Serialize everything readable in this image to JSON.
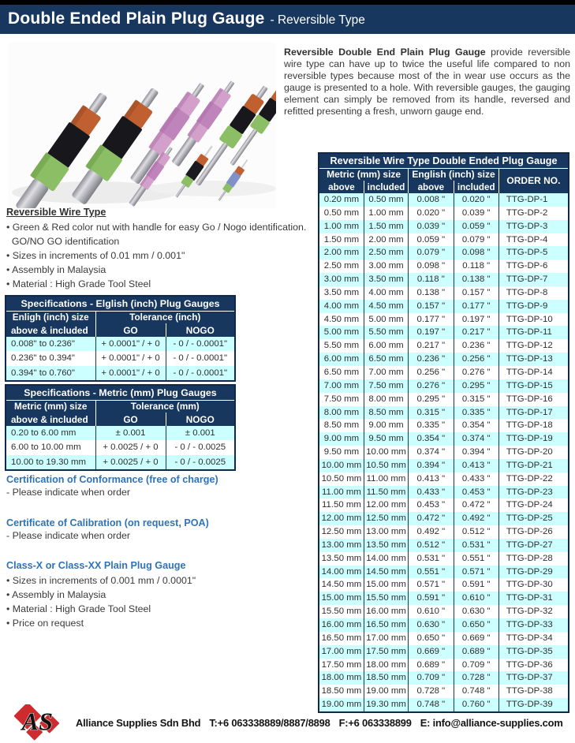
{
  "header": {
    "title_main": "Double Ended Plain Plug Gauge",
    "title_sub": "- Reversible Type"
  },
  "intro": {
    "lead": "Reversible Double End Plain Plug Gauge",
    "body": " provide reversible wire type can have up to twice the useful life compared to non reversible types because most of the in wear use occurs as the gauge is presented to a hole. With reversible gauges, the gauging element can simply be removed from its handle, reversed and refitted presenting a fresh, unworn gauge end."
  },
  "features": {
    "heading": "Reversible Wire Type",
    "lines": [
      "• Green & Red color nut with handle for easy Go / Nogo identification.",
      "  GO/NO GO identification",
      "• Sizes in increments of 0.01 mm / 0.001\"",
      "• Assembly in Malaysia",
      "• Material : High Grade Tool Steel"
    ]
  },
  "main_table": {
    "title": "Reversible Wire Type Double Ended Plug Gauge",
    "group_metric": "Metric (mm) size",
    "group_english": "English (inch) size",
    "order_header": "ORDER NO.",
    "sub_above_1": "above",
    "sub_included_1": "included",
    "sub_above_2": "above",
    "sub_included_2": "included",
    "rows": [
      [
        "0.20 mm",
        "0.50 mm",
        "0.008 \"",
        "0.020 \"",
        "TTG-DP-1"
      ],
      [
        "0.50 mm",
        "1.00 mm",
        "0.020 \"",
        "0.039 \"",
        "TTG-DP-2"
      ],
      [
        "1.00 mm",
        "1.50 mm",
        "0.039 \"",
        "0.059 \"",
        "TTG-DP-3"
      ],
      [
        "1.50 mm",
        "2.00 mm",
        "0.059 \"",
        "0.079 \"",
        "TTG-DP-4"
      ],
      [
        "2.00 mm",
        "2.50 mm",
        "0.079 \"",
        "0.098 \"",
        "TTG-DP-5"
      ],
      [
        "2.50 mm",
        "3.00 mm",
        "0.098 \"",
        "0.118 \"",
        "TTG-DP-6"
      ],
      [
        "3.00 mm",
        "3.50 mm",
        "0.118 \"",
        "0.138 \"",
        "TTG-DP-7"
      ],
      [
        "3.50 mm",
        "4.00 mm",
        "0.138 \"",
        "0.157 \"",
        "TTG-DP-8"
      ],
      [
        "4.00 mm",
        "4.50 mm",
        "0.157 \"",
        "0.177 \"",
        "TTG-DP-9"
      ],
      [
        "4.50 mm",
        "5.00 mm",
        "0.177 \"",
        "0.197 \"",
        "TTG-DP-10"
      ],
      [
        "5.00 mm",
        "5.50 mm",
        "0.197 \"",
        "0.217 \"",
        "TTG-DP-11"
      ],
      [
        "5.50 mm",
        "6.00 mm",
        "0.217 \"",
        "0.236 \"",
        "TTG-DP-12"
      ],
      [
        "6.00 mm",
        "6.50 mm",
        "0.236 \"",
        "0.256 \"",
        "TTG-DP-13"
      ],
      [
        "6.50 mm",
        "7.00 mm",
        "0.256 \"",
        "0.276 \"",
        "TTG-DP-14"
      ],
      [
        "7.00 mm",
        "7.50 mm",
        "0.276 \"",
        "0.295 \"",
        "TTG-DP-15"
      ],
      [
        "7.50 mm",
        "8.00 mm",
        "0.295 \"",
        "0.315 \"",
        "TTG-DP-16"
      ],
      [
        "8.00 mm",
        "8.50 mm",
        "0.315 \"",
        "0.335 \"",
        "TTG-DP-17"
      ],
      [
        "8.50 mm",
        "9.00 mm",
        "0.335 \"",
        "0.354 \"",
        "TTG-DP-18"
      ],
      [
        "9.00 mm",
        "9.50 mm",
        "0.354 \"",
        "0.374 \"",
        "TTG-DP-19"
      ],
      [
        "9.50 mm",
        "10.00 mm",
        "0.374 \"",
        "0.394 \"",
        "TTG-DP-20"
      ],
      [
        "10.00 mm",
        "10.50 mm",
        "0.394 \"",
        "0.413 \"",
        "TTG-DP-21"
      ],
      [
        "10.50 mm",
        "11.00 mm",
        "0.413 \"",
        "0.433 \"",
        "TTG-DP-22"
      ],
      [
        "11.00 mm",
        "11.50 mm",
        "0.433 \"",
        "0.453 \"",
        "TTG-DP-23"
      ],
      [
        "11.50 mm",
        "12.00 mm",
        "0.453 \"",
        "0.472 \"",
        "TTG-DP-24"
      ],
      [
        "12.00 mm",
        "12.50 mm",
        "0.472 \"",
        "0.492 \"",
        "TTG-DP-25"
      ],
      [
        "12.50 mm",
        "13.00 mm",
        "0.492 \"",
        "0.512 \"",
        "TTG-DP-26"
      ],
      [
        "13.00 mm",
        "13.50 mm",
        "0.512 \"",
        "0.531 \"",
        "TTG-DP-27"
      ],
      [
        "13.50 mm",
        "14.00 mm",
        "0.531 \"",
        "0.551 \"",
        "TTG-DP-28"
      ],
      [
        "14.00 mm",
        "14.50 mm",
        "0.551 \"",
        "0.571 \"",
        "TTG-DP-29"
      ],
      [
        "14.50 mm",
        "15.00 mm",
        "0.571 \"",
        "0.591 \"",
        "TTG-DP-30"
      ],
      [
        "15.00 mm",
        "15.50 mm",
        "0.591 \"",
        "0.610 \"",
        "TTG-DP-31"
      ],
      [
        "15.50 mm",
        "16.00 mm",
        "0.610 \"",
        "0.630 \"",
        "TTG-DP-32"
      ],
      [
        "16.00 mm",
        "16.50 mm",
        "0.630 \"",
        "0.650 \"",
        "TTG-DP-33"
      ],
      [
        "16.50 mm",
        "17.00 mm",
        "0.650 \"",
        "0.669 \"",
        "TTG-DP-34"
      ],
      [
        "17.00 mm",
        "17.50 mm",
        "0.669 \"",
        "0.689 \"",
        "TTG-DP-35"
      ],
      [
        "17.50 mm",
        "18.00 mm",
        "0.689 \"",
        "0.709 \"",
        "TTG-DP-36"
      ],
      [
        "18.00 mm",
        "18.50 mm",
        "0.709 \"",
        "0.728 \"",
        "TTG-DP-37"
      ],
      [
        "18.50 mm",
        "19.00 mm",
        "0.728 \"",
        "0.748 \"",
        "TTG-DP-38"
      ],
      [
        "19.00 mm",
        "19.30 mm",
        "0.748 \"",
        "0.760 \"",
        "TTG-DP-39"
      ]
    ]
  },
  "spec_inch_table": {
    "title": "Specifications - Elglish (inch) Plug Gauges",
    "size_header_line1": "Enligh (inch) size",
    "size_header_line2": "above & included",
    "tolerance_header": "Tolerance (inch)",
    "go_label": "GO",
    "nogo_label": "NOGO",
    "rows": [
      [
        "0.008\" to 0.236\"",
        "+ 0.0001\" / + 0",
        "- 0 / - 0.0001\""
      ],
      [
        "0.236\" to 0.394\"",
        "+ 0.0001\" / + 0",
        "- 0 / - 0.0001\""
      ],
      [
        "0.394\" to 0.760\"",
        "+ 0.0001\" / + 0",
        "- 0 / - 0.0001\""
      ]
    ]
  },
  "spec_mm_table": {
    "title": "Specifications - Metric (mm) Plug Gauges",
    "size_header_line1": "Metric (mm) size",
    "size_header_line2": "above & included",
    "tolerance_header": "Tolerance (mm)",
    "go_label": "GO",
    "nogo_label": "NOGO",
    "rows": [
      [
        "0.20 to 6.00 mm",
        "± 0.001",
        "± 0.001"
      ],
      [
        "6.00 to 10.00 mm",
        "+ 0.0025 / + 0",
        "- 0 / - 0.0025"
      ],
      [
        "10.00 to 19.30 mm",
        "+ 0.0025 / + 0",
        "- 0 / - 0.0025"
      ]
    ]
  },
  "certs": {
    "0": {
      "heading": "Certification of Conformance (free of charge)",
      "note": "- Please indicate when order"
    },
    "1": {
      "heading": "Certificate of Calibration (on request, POA)",
      "note": "- Please indicate when order"
    }
  },
  "classx": {
    "heading": "Class-X or Class-XX Plain Plug Gauge",
    "lines": [
      "• Sizes in increments of 0.001 mm / 0.0001\"",
      "• Assembly in Malaysia",
      "• Material : High Grade Tool Steel",
      "• Price on request"
    ]
  },
  "footer": {
    "logo_text": "AS",
    "company": "Alliance Supplies Sdn Bhd",
    "tel": "T:+6 063338889/8887/8898",
    "fax": "F:+6 063338899",
    "email": "E: info@alliance-supplies.com"
  },
  "colors": {
    "navy": "#17375E",
    "row_alt": "#CCFFFF",
    "heading_blue": "#2E74B6",
    "logo_red": "#CE2B2F"
  }
}
